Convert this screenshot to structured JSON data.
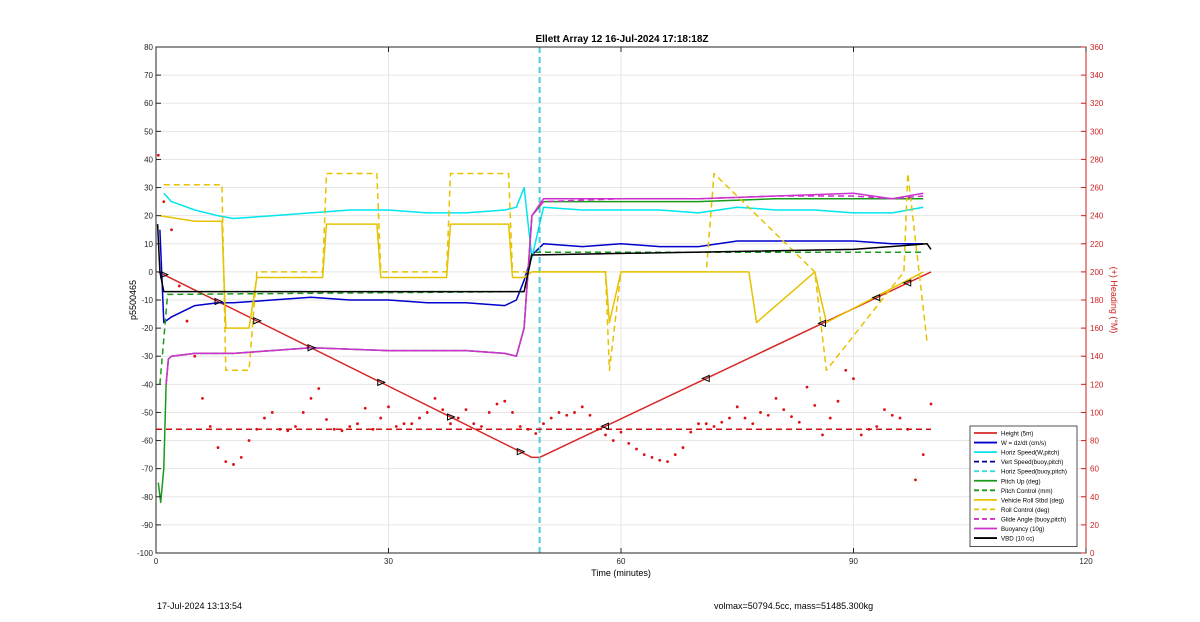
{
  "chart_data": {
    "type": "line",
    "title": "Ellett Array 12 16-Jul-2024 17:18:18Z",
    "xlabel": "Time (minutes)",
    "ylabel": "p5500465",
    "y2label": "(+) Heading (°M)",
    "xlim": [
      0,
      120
    ],
    "ylim": [
      -100,
      80
    ],
    "y2lim": [
      0,
      360
    ],
    "xticks": [
      0,
      30,
      60,
      90,
      120
    ],
    "yticks": [
      -100,
      -90,
      -80,
      -70,
      -60,
      -50,
      -40,
      -30,
      -20,
      -10,
      0,
      10,
      20,
      30,
      40,
      50,
      60,
      70,
      80
    ],
    "y2ticks": [
      0,
      20,
      40,
      60,
      80,
      100,
      120,
      140,
      160,
      180,
      200,
      220,
      240,
      260,
      280,
      300,
      320,
      340,
      360
    ],
    "grid": true,
    "legend_position": "bottom-right",
    "vertical_marker_x": 49.5,
    "series": [
      {
        "name": "Height (5m)",
        "color": "#d62728",
        "style": "solid",
        "axis": "left",
        "x": [
          0.3,
          48.5,
          49.5,
          100.0
        ],
        "y": [
          0,
          -66,
          -66,
          0
        ]
      },
      {
        "name": "W = dz/dt (cm/s)",
        "color": "#0000cc",
        "style": "solid",
        "axis": "left",
        "x": [
          0.5,
          1,
          2,
          5,
          8,
          10,
          15,
          20,
          25,
          30,
          35,
          40,
          45,
          46.5,
          47.5,
          48.5,
          50,
          55,
          60,
          65,
          70,
          75,
          80,
          85,
          90,
          95,
          99
        ],
        "y": [
          15,
          -18,
          -16,
          -12,
          -11,
          -11,
          -10,
          -9,
          -10,
          -10,
          -11,
          -11,
          -12,
          -10,
          -3,
          6,
          10,
          9,
          10,
          9,
          9,
          11,
          11,
          11,
          11,
          10,
          10
        ]
      },
      {
        "name": "Horiz Speed(W,pitch)",
        "color": "#00e5ee",
        "style": "solid",
        "axis": "left",
        "x": [
          1,
          2,
          5,
          8,
          10,
          15,
          20,
          25,
          30,
          35,
          40,
          45,
          46.5,
          47.5,
          48.5,
          50,
          55,
          60,
          65,
          70,
          75,
          80,
          85,
          90,
          95,
          99
        ],
        "y": [
          28,
          25,
          22,
          20,
          19,
          20,
          21,
          22,
          22,
          21,
          21,
          22,
          23,
          30,
          5,
          23,
          22,
          22,
          22,
          21,
          23,
          22,
          22,
          21,
          21,
          23
        ]
      },
      {
        "name": "Vert Speed(buoy,pitch)",
        "color": "#00008b",
        "style": "dashed",
        "axis": "left",
        "x": [
          49.5,
          49.5
        ],
        "y": [
          -100,
          80
        ]
      },
      {
        "name": "Horiz Speed(buoy,pitch)",
        "color": "#33dddd",
        "style": "dashed",
        "axis": "left",
        "x": [
          49.5,
          49.5
        ],
        "y": [
          -100,
          80
        ]
      },
      {
        "name": "Pitch Up (deg)",
        "color": "#1a9a1a",
        "style": "solid",
        "axis": "left",
        "x": [
          0.3,
          0.6,
          1,
          1.3,
          1.6,
          2,
          5,
          10,
          20,
          30,
          40,
          45,
          46.5,
          47.5,
          48.5,
          50,
          60,
          70,
          80,
          90,
          95,
          99
        ],
        "y": [
          -75,
          -82,
          -70,
          -40,
          -31,
          -30,
          -29,
          -29,
          -27,
          -28,
          -28,
          -29,
          -30,
          -20,
          20,
          25,
          25,
          25,
          26,
          26,
          26,
          26
        ]
      },
      {
        "name": "Pitch Control (mm)",
        "color": "#1a9a1a",
        "style": "dashed",
        "axis": "left",
        "x": [
          0.5,
          1.5,
          47.5,
          48.5,
          70,
          99
        ],
        "y": [
          -40,
          -8,
          -7,
          7,
          7,
          7
        ]
      },
      {
        "name": "Vehicle Roll Stbd (deg)",
        "color": "#e6c200",
        "style": "solid",
        "axis": "left",
        "x": [
          0.5,
          5,
          8.5,
          9,
          12,
          13,
          21.5,
          22,
          28.5,
          29,
          37.5,
          38,
          45.5,
          46,
          47.5,
          48.5,
          58,
          58.5,
          60,
          76.5,
          77.5,
          85,
          86.5,
          99
        ],
        "y": [
          20,
          18,
          18,
          -20,
          -20,
          -2,
          -2,
          17,
          17,
          -2,
          -2,
          17,
          17,
          -2,
          -2,
          0,
          0,
          -18,
          0,
          0,
          -18,
          0,
          -18,
          0
        ]
      },
      {
        "name": "Roll Control (deg)",
        "color": "#e6c200",
        "style": "dashed",
        "axis": "left",
        "x": [
          1,
          8,
          8.5,
          9,
          12,
          13,
          21.5,
          22,
          28.5,
          29,
          37.5,
          38,
          45.5,
          46,
          47.5,
          48.5,
          58,
          58.5,
          60,
          71,
          72,
          85,
          86.5,
          96.5,
          97,
          99.5
        ],
        "y": [
          31,
          31,
          31,
          -35,
          -35,
          0,
          0,
          35,
          35,
          0,
          0,
          35,
          35,
          0,
          0,
          0,
          0,
          -35,
          0,
          0,
          35,
          0,
          -35,
          0,
          35,
          -25
        ]
      },
      {
        "name": "Glide Angle (buoy,pitch)",
        "color": "#cc33cc",
        "style": "dashed",
        "axis": "left",
        "x": [
          1.3,
          1.6,
          2,
          5,
          10,
          20,
          30,
          40,
          45,
          46.5,
          47.5,
          48.5,
          50,
          60,
          70,
          80,
          90,
          95,
          99
        ],
        "y": [
          -40,
          -31,
          -30,
          -29,
          -29,
          -27,
          -28,
          -28,
          -29,
          -30,
          -20,
          20,
          25,
          26,
          26,
          27,
          27,
          26,
          27
        ]
      },
      {
        "name": "Buoyancy (10g)",
        "color": "#cc33cc",
        "style": "solid",
        "axis": "left",
        "x": [
          1.3,
          1.6,
          2,
          5,
          10,
          20,
          30,
          40,
          45,
          46.5,
          47.5,
          48.5,
          50,
          60,
          70,
          80,
          90,
          95,
          99
        ],
        "y": [
          -40,
          -31,
          -30,
          -29,
          -29,
          -27,
          -28,
          -28,
          -29,
          -30,
          -20,
          20,
          26,
          26,
          26,
          27,
          28,
          26,
          28
        ]
      },
      {
        "name": "VBD (10 cc)",
        "color": "#000000",
        "style": "solid",
        "axis": "left",
        "x": [
          0.2,
          0.5,
          1,
          2,
          47.5,
          48.5,
          90,
          99.5,
          100
        ],
        "y": [
          17,
          0,
          -7,
          -7,
          -7,
          6,
          8,
          10,
          8
        ]
      },
      {
        "color": "#dd1111",
        "style": "dotted",
        "axis": "right",
        "x": [
          0.3,
          1,
          2,
          3,
          4,
          5,
          6,
          7,
          8,
          9,
          10,
          11,
          12,
          13,
          14,
          15,
          16,
          17,
          18,
          19,
          20,
          21,
          22,
          23,
          24,
          25,
          26,
          27,
          28,
          29,
          30,
          31,
          32,
          33,
          34,
          35,
          36,
          37,
          38,
          39,
          40,
          41,
          42,
          43,
          44,
          45,
          46,
          47,
          48,
          49,
          50,
          51,
          52,
          53,
          54,
          55,
          56,
          57,
          58,
          59,
          60,
          61,
          62,
          63,
          64,
          65,
          66,
          67,
          68,
          69,
          70,
          71,
          72,
          73,
          74,
          75,
          76,
          77,
          78,
          79,
          80,
          81,
          82,
          83,
          84,
          85,
          86,
          87,
          88,
          89,
          90,
          91,
          92,
          93,
          94,
          95,
          96,
          97,
          98,
          99,
          100
        ],
        "y": [
          283,
          250,
          230,
          190,
          165,
          140,
          110,
          90,
          75,
          65,
          63,
          68,
          80,
          88,
          96,
          100,
          88,
          87,
          90,
          100,
          110,
          117,
          95,
          88,
          87,
          90,
          92,
          103,
          88,
          96,
          104,
          90,
          92,
          92,
          96,
          100,
          110,
          102,
          92,
          96,
          102,
          92,
          90,
          100,
          106,
          108,
          100,
          90,
          88,
          85,
          92,
          96,
          100,
          98,
          100,
          104,
          98,
          88,
          84,
          80,
          86,
          78,
          74,
          70,
          68,
          66,
          65,
          70,
          75,
          86,
          92,
          92,
          90,
          93,
          96,
          104,
          96,
          92,
          100,
          98,
          110,
          102,
          97,
          93,
          118,
          105,
          84,
          96,
          108,
          130,
          124,
          84,
          88,
          90,
          102,
          98,
          96,
          88,
          52,
          70,
          106
        ]
      },
      {
        "color": "#cc1111",
        "style": "dashed",
        "axis": "right",
        "x": [
          0,
          100
        ],
        "y": [
          88,
          88
        ]
      }
    ]
  },
  "footer": {
    "left_text": "17-Jul-2024 13:13:54",
    "right_text": "volmax=50794.5cc, mass=51485.300kg"
  }
}
